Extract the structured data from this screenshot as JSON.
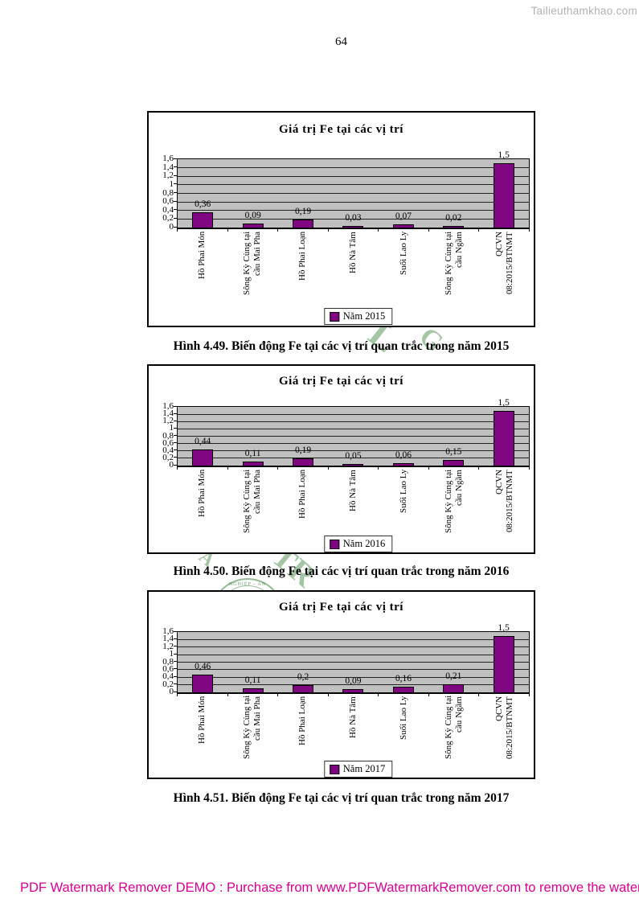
{
  "page": {
    "number": "64",
    "top_watermark": "Tailieuthamkhao.com",
    "bottom_watermark": "PDF Watermark Remover DEMO : Purchase from www.PDFWatermarkRemover.com to remove the watermark"
  },
  "colors": {
    "bar": "#800580",
    "plot_bg": "#c0c0c0",
    "gridline": "#222222",
    "watermark_pink": "#db0094",
    "watermark_gray": "#b2b2b2",
    "stamp_green": "#4e8f4e"
  },
  "stamp": {
    "arc_text": "NGHIỆP - AN",
    "fragments": [
      "L",
      "G",
      "TR",
      "Â"
    ]
  },
  "categories": [
    "Hồ Phai Món",
    "Sông Kỳ Cùng tại\ncầu Mai Pha",
    "Hồ Phai Loạn",
    "Hồ Nà Tâm",
    "Suối Lao Ly",
    "Sông Kỳ Cùng tại\ncầu Ngầm",
    "QCVN\n08:2015/BTNMT"
  ],
  "chart_data": [
    {
      "type": "bar",
      "title": "Giá trị Fe tại các vị trí",
      "legend": "Năm 2015",
      "legend_position": "bottom",
      "grid": true,
      "ylim": [
        0,
        1.6
      ],
      "ytick_labels": [
        "1,6",
        "1,4",
        "1,2",
        "1",
        "0,8",
        "0,6",
        "0,4",
        "0,2",
        "0"
      ],
      "categories": [
        "Hồ Phai Món",
        "Sông Kỳ Cùng tại cầu Mai Pha",
        "Hồ Phai Loạn",
        "Hồ Nà Tâm",
        "Suối Lao Ly",
        "Sông Kỳ Cùng tại cầu Ngầm",
        "QCVN 08:2015/BTNMT"
      ],
      "values": [
        0.36,
        0.09,
        0.19,
        0.03,
        0.07,
        0.02,
        1.5
      ],
      "value_labels": [
        "0,36",
        "0,09",
        "0,19",
        "0,03",
        "0,07",
        "0,02",
        "1,5"
      ],
      "caption": "Hình 4.49. Biến động Fe tại các vị trí quan trắc trong năm 2015"
    },
    {
      "type": "bar",
      "title": "Giá trị Fe tại các vị trí",
      "legend": "Năm 2016",
      "legend_position": "bottom",
      "grid": true,
      "ylim": [
        0,
        1.6
      ],
      "ytick_labels": [
        "1,6",
        "1,4",
        "1,2",
        "1",
        "0,8",
        "0,6",
        "0,4",
        "0,2",
        "0"
      ],
      "categories": [
        "Hồ Phai Món",
        "Sông Kỳ Cùng tại cầu Mai Pha",
        "Hồ Phai Loạn",
        "Hồ Nà Tâm",
        "Suối Lao Ly",
        "Sông Kỳ Cùng tại cầu Ngầm",
        "QCVN 08:2015/BTNMT"
      ],
      "values": [
        0.44,
        0.11,
        0.19,
        0.05,
        0.06,
        0.15,
        1.5
      ],
      "value_labels": [
        "0,44",
        "0,11",
        "0,19",
        "0,05",
        "0,06",
        "0,15",
        "1,5"
      ],
      "caption": "Hình 4.50. Biến động Fe tại các vị trí quan trắc trong năm 2016"
    },
    {
      "type": "bar",
      "title": "Giá trị Fe tại các vị trí",
      "legend": "Năm 2017",
      "legend_position": "bottom",
      "grid": true,
      "ylim": [
        0,
        1.6
      ],
      "ytick_labels": [
        "1,6",
        "1,4",
        "1,2",
        "1",
        "0,8",
        "0,6",
        "0,4",
        "0,2",
        "0"
      ],
      "categories": [
        "Hồ Phai Món",
        "Sông Kỳ Cùng tại cầu Mai Pha",
        "Hồ Phai Loạn",
        "Hồ Nà Tâm",
        "Suối Lao Ly",
        "Sông Kỳ Cùng tại cầu Ngầm",
        "QCVN 08:2015/BTNMT"
      ],
      "values": [
        0.46,
        0.11,
        0.2,
        0.09,
        0.16,
        0.21,
        1.5
      ],
      "value_labels": [
        "0,46",
        "0,11",
        "0,2",
        "0,09",
        "0,16",
        "0,21",
        "1,5"
      ],
      "caption": "Hình 4.51. Biến động Fe tại các vị trí quan trắc trong năm 2017"
    }
  ]
}
